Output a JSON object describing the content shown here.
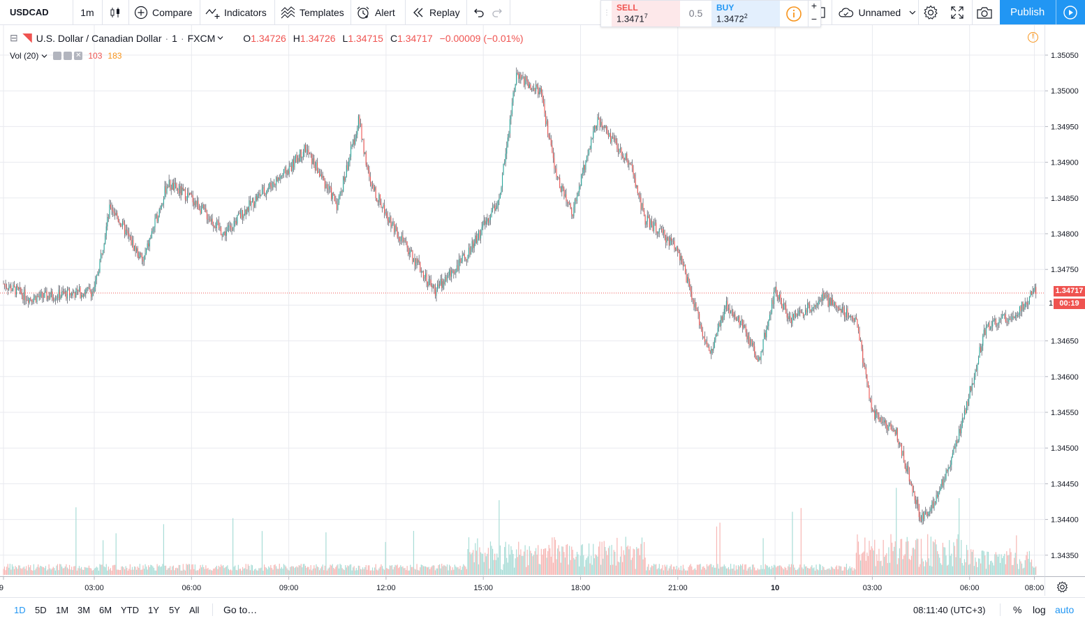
{
  "toolbar": {
    "symbol": "USDCAD",
    "interval": "1m",
    "compare_label": "Compare",
    "indicators_label": "Indicators",
    "templates_label": "Templates",
    "alert_label": "Alert",
    "replay_label": "Replay",
    "layout_name": "Unnamed",
    "publish_label": "Publish"
  },
  "trade": {
    "sell_label": "SELL",
    "sell_price_main": "1.3471",
    "sell_price_sup": "7",
    "spread": "0.5",
    "buy_label": "BUY",
    "buy_price_main": "1.3472",
    "buy_price_sup": "2",
    "zoom_in": "+",
    "zoom_out": "−"
  },
  "legend": {
    "collapse_glyph": "⊟",
    "title": "U.S. Dollar / Canadian Dollar",
    "interval": "1",
    "exchange": "FXCM",
    "open_label": "O",
    "open": "1.34726",
    "high_label": "H",
    "high": "1.34726",
    "low_label": "L",
    "low": "1.34715",
    "close_label": "C",
    "close": "1.34717",
    "change": "−0.00009 (−0.01%)",
    "volume_label": "Vol (20)",
    "volume_value": "103",
    "volume_ma": "183",
    "warning_glyph": "!"
  },
  "price_axis": {
    "labels": [
      "1.35050",
      "1.35000",
      "1.34950",
      "1.34900",
      "1.34850",
      "1.34800",
      "1.34750",
      "1.34650",
      "1.34600",
      "1.34550",
      "1.34500",
      "1.34450",
      "1.34400",
      "1.34350"
    ],
    "current_price": "1.34717",
    "countdown": "00:19",
    "partial_label": "1"
  },
  "time_axis": {
    "labels": [
      "9",
      "03:00",
      "06:00",
      "09:00",
      "12:00",
      "15:00",
      "18:00",
      "21:00",
      "10",
      "03:00",
      "06:00",
      "08:00"
    ]
  },
  "bottombar": {
    "ranges": [
      "1D",
      "5D",
      "1M",
      "3M",
      "6M",
      "YTD",
      "1Y",
      "5Y",
      "All"
    ],
    "goto_label": "Go to…",
    "clock": "08:11:40 (UTC+3)",
    "percent_label": "%",
    "log_label": "log",
    "auto_label": "auto"
  },
  "colors": {
    "up": "#26a69a",
    "down": "#ef5350",
    "candle": "#5d606b",
    "accent": "#2196f3",
    "orange": "#f7931a",
    "grid": "#e8eaef"
  },
  "chart_data": {
    "type": "candlestick",
    "symbol": "USDCAD",
    "ylim": [
      1.3432,
      1.3508
    ],
    "x_ticks": [
      "9",
      "03:00",
      "06:00",
      "09:00",
      "12:00",
      "15:00",
      "18:00",
      "21:00",
      "10",
      "03:00",
      "06:00",
      "08:00"
    ],
    "close_path": [
      [
        "9",
        1.3473
      ],
      [
        "01:00",
        1.3471
      ],
      [
        "03:00",
        1.3472
      ],
      [
        "03:30",
        1.3484
      ],
      [
        "04:30",
        1.3476
      ],
      [
        "05:15",
        1.3487
      ],
      [
        "06:00",
        1.3485
      ],
      [
        "07:00",
        1.348
      ],
      [
        "08:00",
        1.3485
      ],
      [
        "09:00",
        1.3489
      ],
      [
        "09:30",
        1.3492
      ],
      [
        "10:30",
        1.3484
      ],
      [
        "11:10",
        1.3496
      ],
      [
        "11:30",
        1.3487
      ],
      [
        "12:30",
        1.3479
      ],
      [
        "13:30",
        1.3472
      ],
      [
        "14:30",
        1.3477
      ],
      [
        "15:30",
        1.3485
      ],
      [
        "16:00",
        1.3502
      ],
      [
        "16:45",
        1.35
      ],
      [
        "17:15",
        1.3488
      ],
      [
        "17:45",
        1.3483
      ],
      [
        "18:30",
        1.3496
      ],
      [
        "19:30",
        1.349
      ],
      [
        "20:00",
        1.3482
      ],
      [
        "21:00",
        1.3478
      ],
      [
        "21:30",
        1.347
      ],
      [
        "22:00",
        1.3463
      ],
      [
        "22:30",
        1.347
      ],
      [
        "23:00",
        1.3467
      ],
      [
        "23:30",
        1.3462
      ],
      [
        "10",
        1.3472
      ],
      [
        "00:30",
        1.3468
      ],
      [
        "01:30",
        1.3471
      ],
      [
        "02:30",
        1.3468
      ],
      [
        "03:00",
        1.3455
      ],
      [
        "03:45",
        1.3452
      ],
      [
        "04:30",
        1.344
      ],
      [
        "05:00",
        1.3443
      ],
      [
        "05:45",
        1.3453
      ],
      [
        "06:30",
        1.3467
      ],
      [
        "07:30",
        1.3469
      ],
      [
        "08:00",
        1.3472
      ]
    ],
    "last_close": 1.34717,
    "volume": {
      "label": "Vol (20)",
      "last": 103,
      "ma": 183
    }
  }
}
